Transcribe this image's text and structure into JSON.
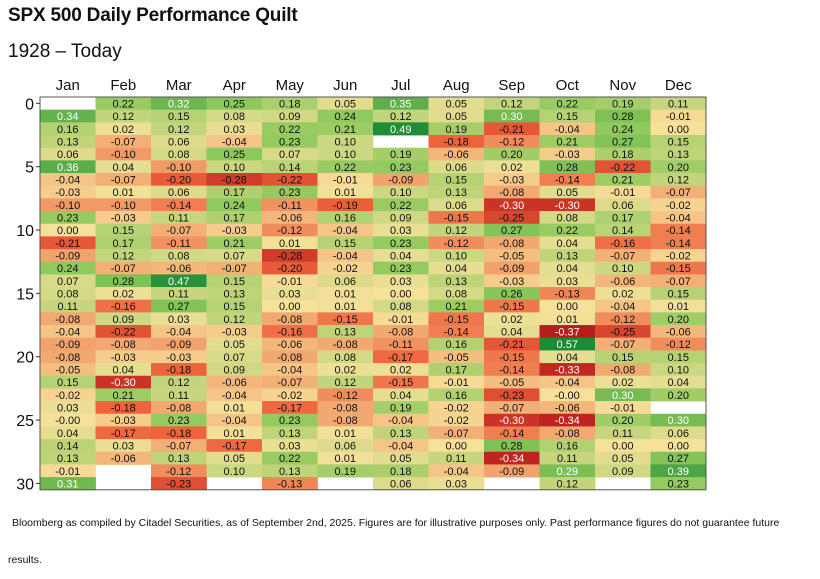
{
  "chart_data": {
    "type": "heatmap",
    "title": "SPX 500 Daily Performance Quilt",
    "subtitle": "1928 – Today",
    "x_categories": [
      "Jan",
      "Feb",
      "Mar",
      "Apr",
      "May",
      "Jun",
      "Jul",
      "Aug",
      "Sep",
      "Oct",
      "Nov",
      "Dec"
    ],
    "y_ticks": [
      "0",
      "5",
      "10",
      "15",
      "20",
      "25",
      "30"
    ],
    "y_tick_values": [
      0,
      5,
      10,
      15,
      20,
      25,
      30
    ],
    "rows": [
      [
        null,
        "0.22",
        "0.32",
        "0.25",
        "0.18",
        "0.05",
        "0.35",
        "0.05",
        "0.12",
        "0.22",
        "0.19",
        "0.11"
      ],
      [
        "0.34",
        "0.12",
        "0.15",
        "0.08",
        "0.09",
        "0.24",
        "0.12",
        "0.05",
        "0.30",
        "0.15",
        "0.28",
        "-0.01"
      ],
      [
        "0.16",
        "0.02",
        "0.12",
        "0.03",
        "0.22",
        "0.21",
        "0.49",
        "0.19",
        "-0.21",
        "-0.04",
        "0.24",
        "0.00"
      ],
      [
        "0.13",
        "-0.07",
        "0.06",
        "-0.04",
        "0.23",
        "0.10",
        null,
        "-0.18",
        "-0.12",
        "0.21",
        "0.27",
        "0.15"
      ],
      [
        "0.06",
        "-0.10",
        "0.08",
        "0.25",
        "0.07",
        "0.10",
        "0.19",
        "-0.06",
        "0.20",
        "-0.03",
        "0.18",
        "0.13"
      ],
      [
        "0.36",
        "0.04",
        "-0.10",
        "0.10",
        "0.14",
        "0.22",
        "0.23",
        "0.06",
        "0.02",
        "0.28",
        "-0.22",
        "0.20"
      ],
      [
        "-0.04",
        "-0.07",
        "-0.20",
        "-0.28",
        "-0.22",
        "-0.01",
        "-0.09",
        "0.15",
        "-0.03",
        "-0.14",
        "0.21",
        "0.12"
      ],
      [
        "-0.03",
        "0.01",
        "0.06",
        "0.17",
        "0.23",
        "0.01",
        "0.10",
        "0.13",
        "-0.08",
        "0.05",
        "-0.01",
        "-0.07"
      ],
      [
        "-0.10",
        "-0.10",
        "-0.14",
        "0.24",
        "-0.11",
        "-0.19",
        "0.22",
        "0.06",
        "-0.30",
        "-0.30",
        "0.06",
        "-0.02"
      ],
      [
        "0.23",
        "-0.03",
        "0.11",
        "0.17",
        "-0.06",
        "0.16",
        "0.09",
        "-0.15",
        "-0.25",
        "0.08",
        "0.17",
        "-0.04"
      ],
      [
        "0.00",
        "0.15",
        "-0.07",
        "-0.03",
        "-0.12",
        "-0.04",
        "0.03",
        "0.12",
        "0.27",
        "0.22",
        "0.14",
        "-0.14"
      ],
      [
        "-0.21",
        "0.17",
        "-0.11",
        "0.21",
        "0.01",
        "0.15",
        "0.23",
        "-0.12",
        "-0.08",
        "0.04",
        "-0.16",
        "-0.14"
      ],
      [
        "-0.09",
        "0.12",
        "0.08",
        "0.07",
        "-0.28",
        "-0.04",
        "0.04",
        "0.10",
        "-0.05",
        "0.13",
        "-0.07",
        "-0.02"
      ],
      [
        "0.24",
        "-0.07",
        "-0.06",
        "-0.07",
        "-0.20",
        "-0.02",
        "0.23",
        "0.04",
        "-0.09",
        "0.04",
        "0.10",
        "-0.15"
      ],
      [
        "0.07",
        "0.28",
        "0.47",
        "0.15",
        "-0.01",
        "0.06",
        "0.03",
        "0.13",
        "-0.03",
        "0.03",
        "-0.06",
        "-0.07"
      ],
      [
        "0.08",
        "0.02",
        "0.11",
        "0.13",
        "0.03",
        "0.01",
        "0.00",
        "0.08",
        "0.26",
        "-0.13",
        "0.02",
        "0.15"
      ],
      [
        "0.11",
        "-0.16",
        "0.27",
        "0.15",
        "0.00",
        "0.01",
        "0.08",
        "0.21",
        "-0.15",
        "0.00",
        "-0.04",
        "0.01"
      ],
      [
        "-0.08",
        "0.09",
        "0.03",
        "0.12",
        "-0.08",
        "-0.15",
        "-0.01",
        "-0.15",
        "0.02",
        "0.01",
        "-0.12",
        "0.20"
      ],
      [
        "-0.04",
        "-0.22",
        "-0.04",
        "-0.03",
        "-0.16",
        "0.13",
        "-0.08",
        "-0.14",
        "0.04",
        "-0.37",
        "-0.25",
        "-0.06"
      ],
      [
        "-0.09",
        "-0.08",
        "-0.09",
        "0.05",
        "-0.06",
        "-0.08",
        "-0.11",
        "0.16",
        "-0.21",
        "0.57",
        "-0.07",
        "-0.12"
      ],
      [
        "-0.08",
        "-0.03",
        "-0.03",
        "0.07",
        "-0.08",
        "0.08",
        "-0.17",
        "-0.05",
        "-0.15",
        "0.04",
        "0.15",
        "0.15"
      ],
      [
        "-0.05",
        "0.04",
        "-0.18",
        "0.09",
        "-0.04",
        "0.02",
        "0.02",
        "0.17",
        "-0.14",
        "-0.33",
        "-0.08",
        "0.10"
      ],
      [
        "0.15",
        "-0.30",
        "0.12",
        "-0.06",
        "-0.07",
        "0.12",
        "-0.15",
        "-0.01",
        "-0.05",
        "-0.04",
        "0.02",
        "0.04"
      ],
      [
        "-0.02",
        "0.21",
        "0.11",
        "-0.04",
        "-0.02",
        "-0.12",
        "0.04",
        "0.16",
        "-0.23",
        "-0.00",
        "0.30",
        "0.20"
      ],
      [
        "0.03",
        "-0.18",
        "-0.08",
        "0.01",
        "-0.17",
        "-0.08",
        "0.19",
        "-0.02",
        "-0.07",
        "-0.06",
        "-0.01",
        null
      ],
      [
        "-0.00",
        "-0.03",
        "0.23",
        "-0.04",
        "0.23",
        "-0.08",
        "-0.04",
        "-0.02",
        "-0.30",
        "-0.34",
        "0.20",
        "0.30"
      ],
      [
        "0.04",
        "-0.17",
        "-0.18",
        "0.01",
        "0.13",
        "0.01",
        "0.13",
        "-0.07",
        "-0.14",
        "-0.08",
        "0.11",
        "0.06"
      ],
      [
        "0.14",
        "0.03",
        "-0.07",
        "-0.17",
        "0.03",
        "0.06",
        "-0.04",
        "0.00",
        "0.28",
        "0.16",
        "0.00",
        "0.00"
      ],
      [
        "0.13",
        "-0.06",
        "0.13",
        "0.05",
        "0.22",
        "0.01",
        "0.05",
        "0.11",
        "-0.34",
        "0.11",
        "0.05",
        "0.27"
      ],
      [
        "-0.01",
        null,
        "-0.12",
        "0.10",
        "0.13",
        "0.19",
        "0.18",
        "-0.04",
        "-0.09",
        "0.29",
        "0.09",
        "0.39"
      ],
      [
        "0.31",
        null,
        "-0.23",
        null,
        "-0.13",
        null,
        "0.06",
        "0.03",
        null,
        "0.12",
        null,
        "0.23"
      ]
    ],
    "color_scale": {
      "negative": "#b81d1d",
      "neutral": "#f6e19b",
      "positive": "#1d8a36"
    }
  },
  "footnote": {
    "line1": "Bloomberg as compiled by Citadel Securities, as of September 2nd, 2025. Figures are for illustrative purposes only. Past performance figures do not guarantee future",
    "line2": "results."
  }
}
